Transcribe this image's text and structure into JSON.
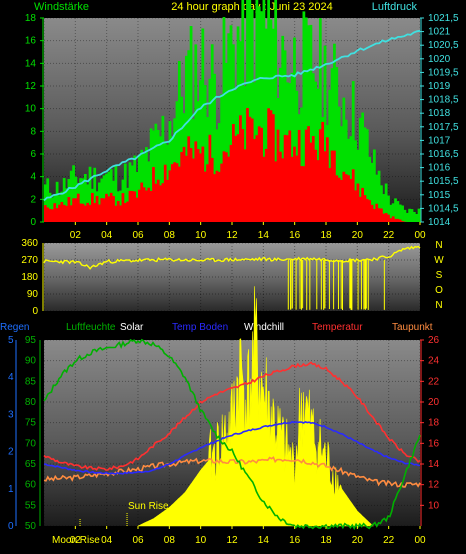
{
  "header": {
    "left_label": "Windstärke",
    "title": "24 hour graph day : Juni 23 2024",
    "right_label": "Luftdruck"
  },
  "legend": [
    {
      "label": "Regen",
      "color": "#1e6fff"
    },
    {
      "label": "Luftfeuchte",
      "color": "#00b000"
    },
    {
      "label": "Solar",
      "color": "#ffffff"
    },
    {
      "label": "Temp Boden",
      "color": "#2a2aff"
    },
    {
      "label": "Windchill",
      "color": "#ffffff"
    },
    {
      "label": "Temperatur",
      "color": "#ff3030"
    },
    {
      "label": "Taupunkt",
      "color": "#ff8c40"
    }
  ],
  "x_tick_labels": [
    "02",
    "04",
    "06",
    "08",
    "10",
    "12",
    "14",
    "16",
    "18",
    "20",
    "22",
    "00"
  ],
  "direction_letters": [
    "N",
    "W",
    "S",
    "O",
    "N"
  ],
  "annotations": {
    "sun_rise": "Sun Rise",
    "moon_rise": "Moon Rise"
  },
  "chart_data": [
    {
      "type": "bar",
      "id": "wind-pressure",
      "title": "24 hour graph day : Juni 23 2024",
      "x_range": [
        0,
        24
      ],
      "left_axis": {
        "label": "Windstärke",
        "range": [
          0,
          18
        ],
        "ticks": [
          "0",
          "2",
          "4",
          "6",
          "8",
          "10",
          "12",
          "14",
          "16",
          "18"
        ]
      },
      "right_axis": {
        "label": "Luftdruck",
        "range": [
          1014,
          1021.5
        ],
        "ticks": [
          "1014",
          "1014,5",
          "1015",
          "1015,5",
          "1016",
          "1016,5",
          "1017",
          "1017,5",
          "1018",
          "1018,5",
          "1019",
          "1019,5",
          "1020",
          "1020,5",
          "1021",
          "1021,5"
        ]
      },
      "series": [
        {
          "name": "",
          "kind": "gust",
          "color": "#00e000",
          "x": [
            0,
            1,
            2,
            3,
            4,
            5,
            6,
            7,
            8,
            9,
            10,
            11,
            12,
            13,
            14,
            15,
            16,
            17,
            18,
            19,
            20,
            21,
            22,
            23
          ],
          "values": [
            3,
            3,
            4,
            4,
            4,
            4,
            5,
            7,
            9,
            13,
            14,
            12,
            16,
            17,
            18,
            15,
            14,
            14,
            13,
            11,
            9,
            5,
            2,
            1
          ]
        },
        {
          "name": "",
          "kind": "mean",
          "color": "#ff0000",
          "x": [
            0,
            1,
            2,
            3,
            4,
            5,
            6,
            7,
            8,
            9,
            10,
            11,
            12,
            13,
            14,
            15,
            16,
            17,
            18,
            19,
            20,
            21,
            22,
            23
          ],
          "values": [
            1.5,
            1.5,
            2,
            2,
            2,
            2,
            2.5,
            4,
            5,
            6,
            6,
            6,
            7,
            8,
            8,
            7,
            7,
            7,
            7,
            5,
            3,
            1.5,
            0.5,
            0
          ]
        },
        {
          "name": "",
          "kind": "pressure",
          "color": "#40e0e0",
          "x": [
            0,
            2,
            4,
            6,
            8,
            10,
            12,
            14,
            16,
            18,
            20,
            22,
            24
          ],
          "values": [
            1014.8,
            1015.3,
            1015.9,
            1016.4,
            1017.0,
            1018.2,
            1018.9,
            1019.3,
            1019.4,
            1019.8,
            1020.3,
            1020.7,
            1021.0
          ]
        }
      ]
    },
    {
      "type": "scatter",
      "id": "wind-direction",
      "x_range": [
        0,
        24
      ],
      "y_range": [
        0,
        360
      ],
      "y_ticks": [
        "0",
        "90",
        "180",
        "270",
        "360"
      ],
      "series": [
        {
          "name": "",
          "color": "#ffff00",
          "x": [
            0,
            1,
            2,
            3,
            4,
            5,
            6,
            7,
            8,
            9,
            10,
            11,
            12,
            13,
            14,
            15,
            16,
            17,
            18,
            19,
            20,
            21,
            22,
            23,
            24
          ],
          "values": [
            262,
            262,
            258,
            230,
            262,
            265,
            268,
            270,
            272,
            270,
            268,
            270,
            272,
            272,
            275,
            272,
            275,
            278,
            272,
            268,
            270,
            275,
            288,
            330,
            340
          ]
        }
      ]
    },
    {
      "type": "line",
      "id": "climate",
      "x_range": [
        0,
        24
      ],
      "left_axis": {
        "label": "Regen",
        "range": [
          0,
          5
        ],
        "ticks": [
          "0",
          "1",
          "2",
          "3",
          "4",
          "5"
        ]
      },
      "left_axis_2": {
        "label": "Luftfeuchte",
        "range": [
          50,
          95
        ],
        "ticks": [
          "50",
          "55",
          "60",
          "65",
          "70",
          "75",
          "80",
          "85",
          "90",
          "95"
        ]
      },
      "right_axis": {
        "label": "Temperatur",
        "range": [
          8,
          26
        ],
        "ticks": [
          "10",
          "12",
          "14",
          "16",
          "18",
          "20",
          "22",
          "24",
          "26"
        ]
      },
      "series": [
        {
          "name": "Luftfeuchte",
          "axis": "humidity",
          "color": "#00b000",
          "x": [
            0,
            1,
            2,
            3,
            4,
            5,
            6,
            7,
            8,
            9,
            10,
            11,
            12,
            13,
            14,
            15,
            16,
            17,
            18,
            19,
            20,
            21,
            22,
            23,
            24
          ],
          "values": [
            80,
            86,
            90,
            92,
            93,
            94,
            95,
            94,
            91,
            86,
            78,
            72,
            68,
            62,
            56,
            52,
            50,
            50,
            50,
            50,
            50,
            50,
            52,
            62,
            72
          ]
        },
        {
          "name": "Temp Boden",
          "axis": "temperature",
          "color": "#2a2aff",
          "x": [
            0,
            1,
            2,
            3,
            4,
            5,
            6,
            7,
            8,
            9,
            10,
            11,
            12,
            13,
            14,
            15,
            16,
            17,
            18,
            19,
            20,
            21,
            22,
            23,
            24
          ],
          "values": [
            14.0,
            13.7,
            13.4,
            13.2,
            13.1,
            13.1,
            13.2,
            13.4,
            14.0,
            14.8,
            15.6,
            16.2,
            16.8,
            17.2,
            17.6,
            17.9,
            18.1,
            18.0,
            17.6,
            16.9,
            16.1,
            15.3,
            14.6,
            14.1,
            13.9
          ]
        },
        {
          "name": "Temperatur",
          "axis": "temperature",
          "color": "#ff3030",
          "x": [
            0,
            1,
            2,
            3,
            4,
            5,
            6,
            7,
            8,
            9,
            10,
            11,
            12,
            13,
            14,
            15,
            16,
            17,
            18,
            19,
            20,
            21,
            22,
            23,
            24
          ],
          "values": [
            14.8,
            14.2,
            13.8,
            13.6,
            13.5,
            13.8,
            14.5,
            15.8,
            17.0,
            18.5,
            20.0,
            20.8,
            21.3,
            21.8,
            22.5,
            23.0,
            23.5,
            23.7,
            23.2,
            22.0,
            20.5,
            18.5,
            16.5,
            15.0,
            14.2
          ]
        },
        {
          "name": "Taupunkt",
          "axis": "temperature",
          "color": "#ff8c40",
          "x": [
            0,
            1,
            2,
            3,
            4,
            5,
            6,
            7,
            8,
            9,
            10,
            11,
            12,
            13,
            14,
            15,
            16,
            17,
            18,
            19,
            20,
            21,
            22,
            23,
            24
          ],
          "values": [
            12.5,
            12.6,
            12.7,
            12.9,
            13.1,
            13.3,
            13.5,
            13.8,
            14.0,
            14.2,
            14.3,
            14.3,
            14.2,
            14.2,
            14.3,
            14.5,
            14.5,
            14.2,
            13.8,
            13.3,
            12.8,
            12.3,
            12.1,
            12.0,
            12.1
          ]
        },
        {
          "name": "Solar",
          "axis": "rain",
          "color": "#ffff00",
          "kind": "area",
          "x": [
            6,
            7,
            8,
            9,
            10,
            11,
            12,
            12.5,
            13,
            13.5,
            14,
            14.5,
            15,
            15.5,
            16,
            16.5,
            17,
            17.5,
            18,
            19,
            20,
            20.5,
            21
          ],
          "values": [
            0,
            0.2,
            0.5,
            0.9,
            1.5,
            2.0,
            2.8,
            4.2,
            3.4,
            4.6,
            3.6,
            3.0,
            2.4,
            2.0,
            1.6,
            3.4,
            2.6,
            2.2,
            1.8,
            1.0,
            0.4,
            0.2,
            0
          ]
        }
      ]
    }
  ]
}
